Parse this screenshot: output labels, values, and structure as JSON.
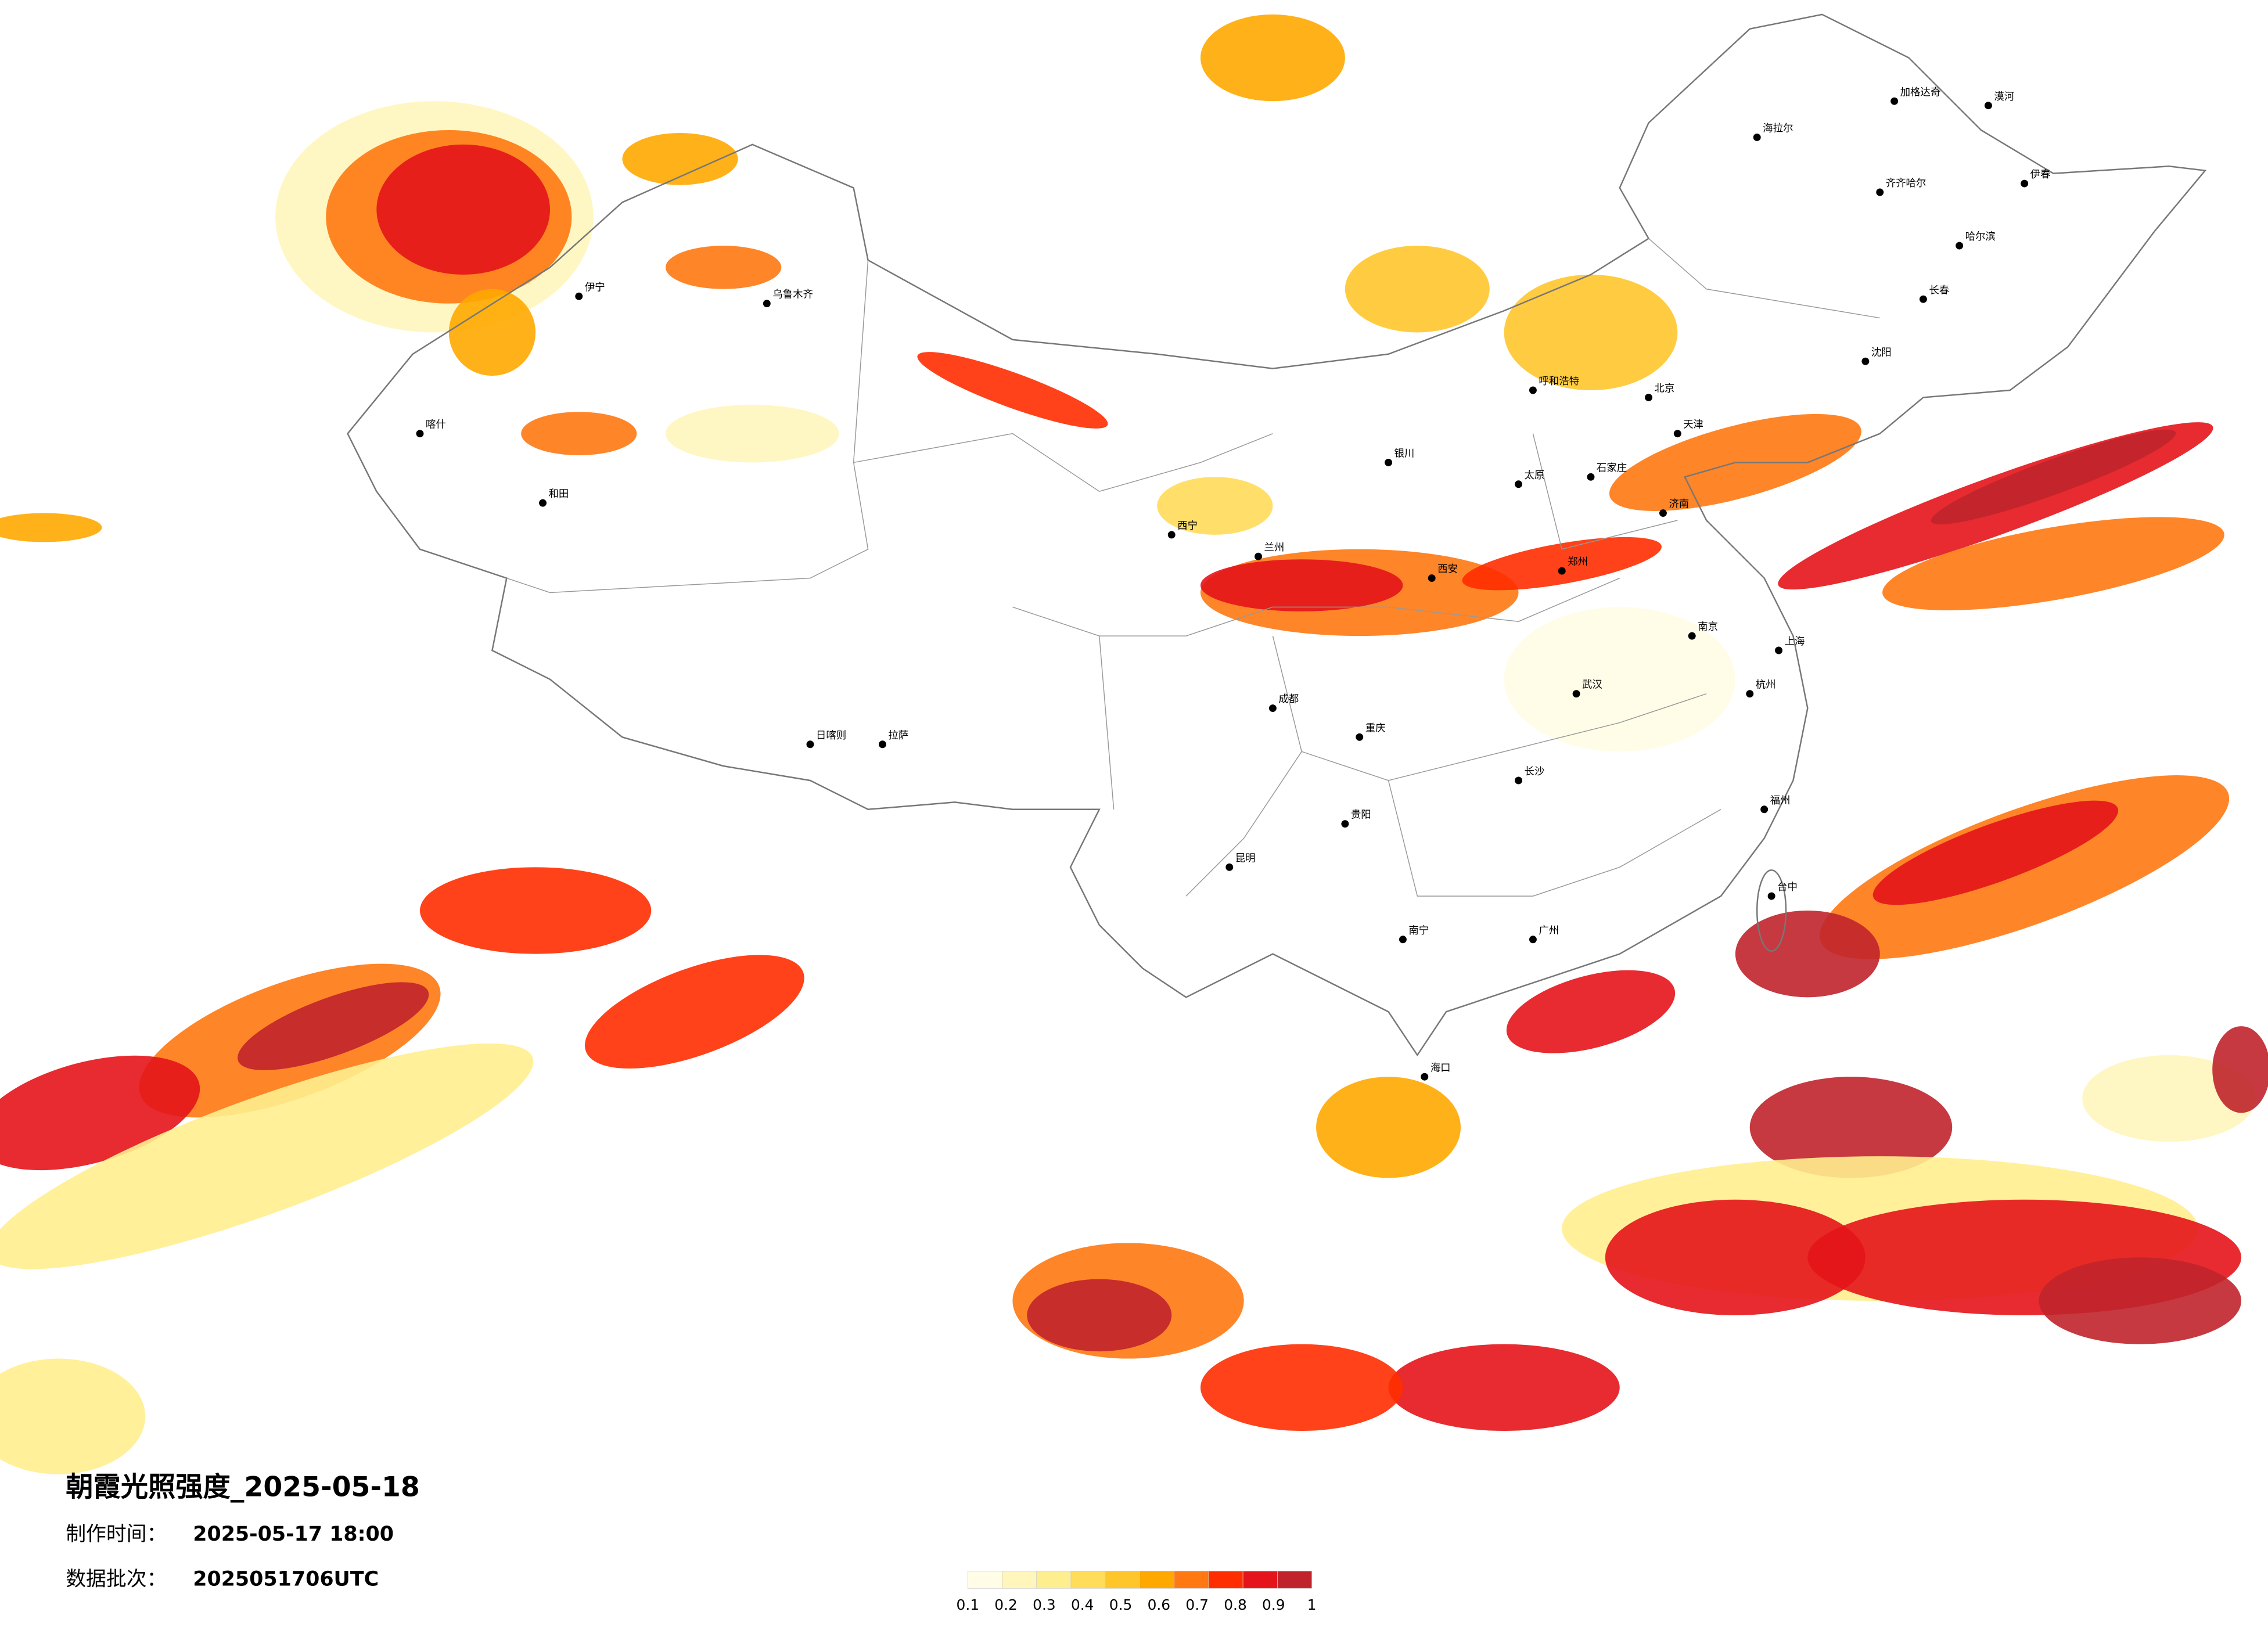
{
  "title": "朝霞光照强度_2025-05-18",
  "made_label": "制作时间：",
  "made_time": "2025-05-17 18:00",
  "batch_label": "数据批次：",
  "batch": "2025051706UTC",
  "legend": {
    "ticks": [
      0.1,
      0.2,
      0.3,
      0.4,
      0.5,
      0.6,
      0.7,
      0.8,
      0.9,
      1
    ],
    "colors": [
      "#fffde6",
      "#fff6bc",
      "#ffee8e",
      "#ffdc5a",
      "#ffc62c",
      "#ffa800",
      "#ff7812",
      "#ff2e00",
      "#e4141a",
      "#c0232b"
    ]
  },
  "cities": [
    "漠河",
    "加格达奇",
    "海拉尔",
    "伊春",
    "齐齐哈尔",
    "哈尔滨",
    "长春",
    "沈阳",
    "呼和浩特",
    "北京",
    "天津",
    "石家庄",
    "太原",
    "济南",
    "郑州",
    "西安",
    "兰州",
    "西宁",
    "银川",
    "乌鲁木齐",
    "伊宁",
    "喀什",
    "和田",
    "拉萨",
    "日喀则",
    "成都",
    "重庆",
    "贵阳",
    "昆明",
    "南宁",
    "广州",
    "长沙",
    "武汉",
    "南京",
    "上海",
    "杭州",
    "福州",
    "台中",
    "海口"
  ]
}
